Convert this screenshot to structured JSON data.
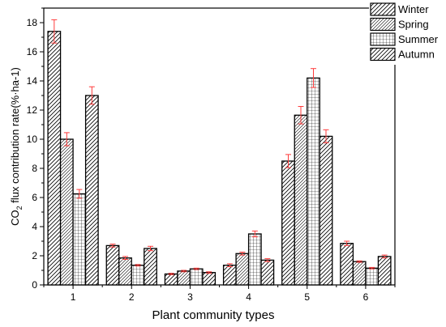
{
  "chart_data": {
    "type": "bar",
    "xlabel": "Plant community types",
    "ylabel": {
      "prefix": "CO",
      "subscript": "2",
      "suffix": " flux contribution rate(%·ha-1)"
    },
    "categories": [
      "1",
      "2",
      "3",
      "4",
      "5",
      "6"
    ],
    "ylim": [
      0,
      19
    ],
    "yticks": [
      0,
      2,
      4,
      6,
      8,
      10,
      12,
      14,
      16,
      18
    ],
    "grid": false,
    "legend_position": "top-right",
    "error_bar_color": "#ff3b3b",
    "series": [
      {
        "name": "Winter",
        "pattern": "diagonal",
        "values": [
          17.4,
          2.7,
          0.75,
          1.35,
          8.5,
          2.85
        ],
        "errors": [
          0.8,
          0.1,
          0.05,
          0.1,
          0.45,
          0.15
        ]
      },
      {
        "name": "Spring",
        "pattern": "diagonal-fine",
        "values": [
          10.0,
          1.85,
          0.95,
          2.15,
          11.65,
          1.6
        ],
        "errors": [
          0.45,
          0.1,
          0.05,
          0.1,
          0.6,
          0.05
        ]
      },
      {
        "name": "Summer",
        "pattern": "grid",
        "values": [
          6.25,
          1.35,
          1.1,
          3.5,
          14.2,
          1.15
        ],
        "errors": [
          0.3,
          0.05,
          0.05,
          0.2,
          0.65,
          0.05
        ]
      },
      {
        "name": "Autumn",
        "pattern": "diagonal",
        "values": [
          13.0,
          2.5,
          0.85,
          1.7,
          10.2,
          1.95
        ],
        "errors": [
          0.6,
          0.15,
          0.05,
          0.1,
          0.45,
          0.1
        ]
      }
    ]
  }
}
